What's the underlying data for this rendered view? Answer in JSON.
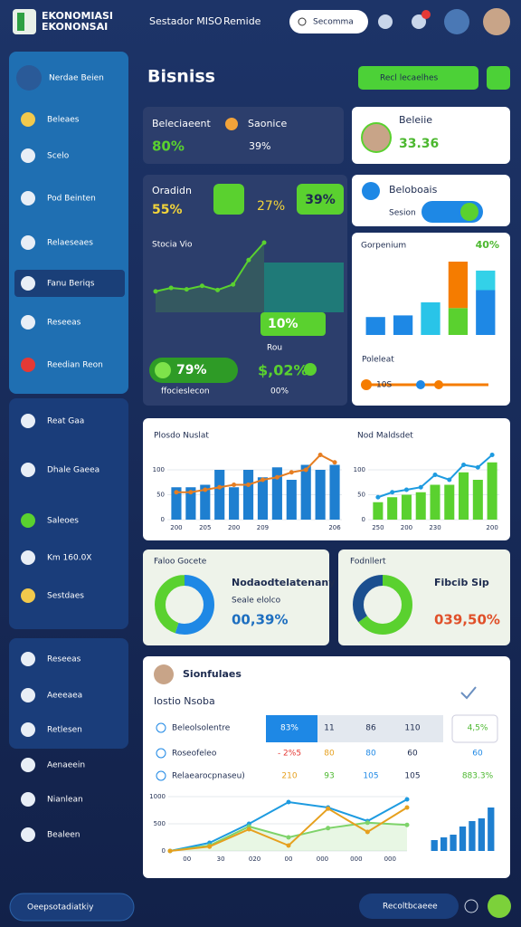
{
  "header": {
    "logo": [
      "EKONOMIASI",
      "EKONONSAI"
    ],
    "nav": [
      "Sestador MISO",
      "Remide"
    ],
    "search": "Secomma"
  },
  "sidebar": {
    "profile": "Nerdae Beien",
    "items": [
      "Beleaes",
      "Scelo",
      "Pod Beinten",
      "Relaeseaes",
      "Fanu Beriqs",
      "Reseeas",
      "Reedian Reon",
      "Reat Gaa",
      "Dhale Gaeea",
      "Saleoes",
      "Km 160.0X",
      "Sestdaes",
      "Reseeas",
      "Aeeeaea",
      "Retlesen",
      "Aenaeein",
      "Nianlean",
      "Bealeen"
    ],
    "footer": "Oeepsotadiatkiy"
  },
  "footer_search": "Recoltbcaeee",
  "page": {
    "title": "Bisniss",
    "button": "Recl lecaelhes"
  },
  "cards": {
    "summary": {
      "label": "Beleciaeent",
      "value": "80%",
      "label2": "Saonice",
      "value2": "39%"
    },
    "profile": {
      "label": "Beleiie",
      "value": "33.36"
    },
    "growth": {
      "label": "Oradidn",
      "value": "55%",
      "value2": "27%",
      "badge": "39%",
      "subtitle": "Stocia Vio",
      "marker": "10%",
      "note": "Rou",
      "pill": "79%",
      "total": "$,02%",
      "footer": "ffocieslecon",
      "footer_value": "00%"
    },
    "session": {
      "label": "Beloboais",
      "sub": "Sesion"
    },
    "composition": {
      "label": "Gorpenium",
      "value": "40%",
      "sub": "Poleleat",
      "slider": "10S"
    },
    "donut_left": {
      "caption": "Faloo Gocete",
      "title": "Nodaodtelatenany",
      "sub": "Seale elolco",
      "value": "00,39%"
    },
    "donut_right": {
      "caption": "Fodnllert",
      "title": "Fibcib Sip",
      "value": "039,50%"
    },
    "table": {
      "title": "Sionfulaes",
      "subtitle": "Iostio Nsoba",
      "rows": [
        [
          "Beleolsolentre",
          "83%",
          "11",
          "86",
          "110",
          "4,5%"
        ],
        [
          "Roseofeleo",
          "- 2%5",
          "80",
          "80",
          "60",
          "60"
        ],
        [
          "Relaearocpnaseu)",
          "210",
          "93",
          "105",
          "105",
          "883.3%"
        ]
      ]
    }
  },
  "charts": {
    "growth": {
      "type": "line",
      "color": "#5ad12f",
      "values": [
        30,
        35,
        33,
        38,
        32,
        40,
        75,
        100
      ],
      "ylim": [
        0,
        100
      ]
    },
    "composition": {
      "type": "bar",
      "stacked": true,
      "ylim": [
        0,
        100
      ],
      "series": [
        {
          "color": "#1e88e5",
          "values": [
            22,
            24,
            0,
            0,
            55
          ]
        },
        {
          "color": "#29c4e8",
          "values": [
            0,
            0,
            40,
            0,
            0
          ]
        },
        {
          "color": "#5ad12f",
          "values": [
            0,
            0,
            0,
            33,
            0
          ]
        },
        {
          "color": "#f57c00",
          "values": [
            0,
            0,
            0,
            57,
            0
          ]
        },
        {
          "color": "#33d1e8",
          "values": [
            0,
            0,
            0,
            0,
            24
          ]
        }
      ]
    },
    "trend_left": {
      "type": "bar",
      "title": "Plosdo Nuslat",
      "ylim": [
        0,
        140
      ],
      "yticks": [
        0,
        50,
        100
      ],
      "categories": [
        "200",
        null,
        "205",
        null,
        "200",
        null,
        "209",
        null,
        null,
        null,
        null,
        "206"
      ],
      "series": [
        {
          "color": "#1e7fd0",
          "values": [
            65,
            65,
            70,
            100,
            65,
            100,
            85,
            105,
            80,
            110,
            100,
            110
          ]
        },
        {
          "color": "#e67e22",
          "type": "line",
          "values": [
            55,
            55,
            60,
            65,
            70,
            70,
            80,
            85,
            95,
            100,
            130,
            115
          ]
        }
      ]
    },
    "trend_right": {
      "type": "bar",
      "title": "Nod Maldsdet",
      "ylim": [
        0,
        140
      ],
      "yticks": [
        0,
        50,
        100
      ],
      "categories": [
        "250",
        null,
        "200",
        null,
        "230",
        null,
        null,
        null,
        "200"
      ],
      "series": [
        {
          "color": "#5ad12f",
          "values": [
            35,
            45,
            50,
            55,
            70,
            70,
            95,
            80,
            115
          ]
        },
        {
          "color": "#1e9be0",
          "type": "line",
          "values": [
            45,
            55,
            60,
            65,
            90,
            80,
            110,
            105,
            130
          ]
        }
      ]
    },
    "donut_left": {
      "values": [
        55,
        45
      ],
      "colors": [
        "#1e88e5",
        "#5ad12f"
      ]
    },
    "donut_right": {
      "values": [
        65,
        35
      ],
      "colors": [
        "#5ad12f",
        "#1b4f8f"
      ]
    },
    "bottom": {
      "type": "line",
      "ylim": [
        0,
        1000
      ],
      "yticks": [
        0,
        500,
        1000
      ],
      "categories": [
        "00",
        "30",
        "020",
        "00",
        "000",
        "000",
        "000"
      ],
      "series": [
        {
          "color": "#1e9be0",
          "values": [
            0,
            150,
            500,
            900,
            800,
            550,
            950
          ]
        },
        {
          "color": "#7ed36a",
          "values": [
            0,
            100,
            450,
            250,
            420,
            520,
            480
          ]
        },
        {
          "color": "#e6a01e",
          "values": [
            0,
            80,
            400,
            100,
            780,
            350,
            800
          ]
        }
      ]
    },
    "bottom_bars": {
      "type": "bar",
      "ylim": [
        0,
        100
      ],
      "color": "#1e7fd0",
      "values": [
        20,
        25,
        30,
        45,
        55,
        60,
        80
      ]
    }
  }
}
